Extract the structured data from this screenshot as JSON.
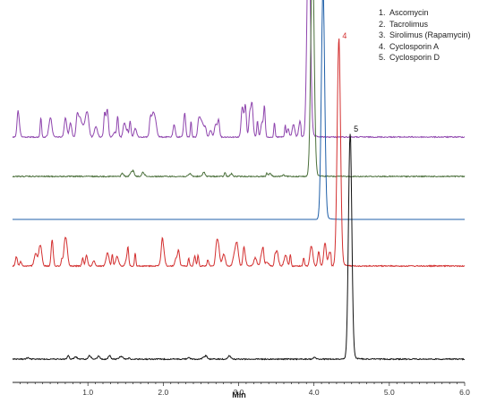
{
  "chart_data": {
    "type": "line",
    "title": "",
    "xlabel": "Min",
    "ylabel": "",
    "xlim": [
      0,
      6.0
    ],
    "x_ticks": [
      "1.0",
      "2.0",
      "3.0",
      "4.0",
      "5.0",
      "6.0"
    ],
    "grid": false,
    "legend_position": "top-right",
    "legend": [
      {
        "num": "1.",
        "label": "Ascomycin"
      },
      {
        "num": "2.",
        "label": "Tacrolimus"
      },
      {
        "num": "3.",
        "label": "Sirolimus (Rapamycin)"
      },
      {
        "num": "4.",
        "label": "Cyclosporin A"
      },
      {
        "num": "5.",
        "label": "Cyclosporin D"
      }
    ],
    "series": [
      {
        "label": "1",
        "color": "#8e44ad",
        "baseline_offset": 0.62,
        "peak_time": 3.93,
        "peak_height": 0.62,
        "noise": 0.045
      },
      {
        "label": "2",
        "color": "#4a6f3a",
        "baseline_offset": 0.51,
        "peak_time": 3.98,
        "peak_height": 0.63,
        "noise": 0.01
      },
      {
        "label": "3",
        "color": "#1f5fa8",
        "baseline_offset": 0.39,
        "peak_time": 4.12,
        "peak_height": 0.64,
        "noise": 0.0
      },
      {
        "label": "4",
        "color": "#d32f2f",
        "baseline_offset": 0.26,
        "peak_time": 4.33,
        "peak_height": 0.63,
        "noise": 0.035
      },
      {
        "label": "5",
        "color": "#111111",
        "baseline_offset": 0.0,
        "peak_time": 4.48,
        "peak_height": 0.63,
        "noise": 0.008
      }
    ]
  }
}
